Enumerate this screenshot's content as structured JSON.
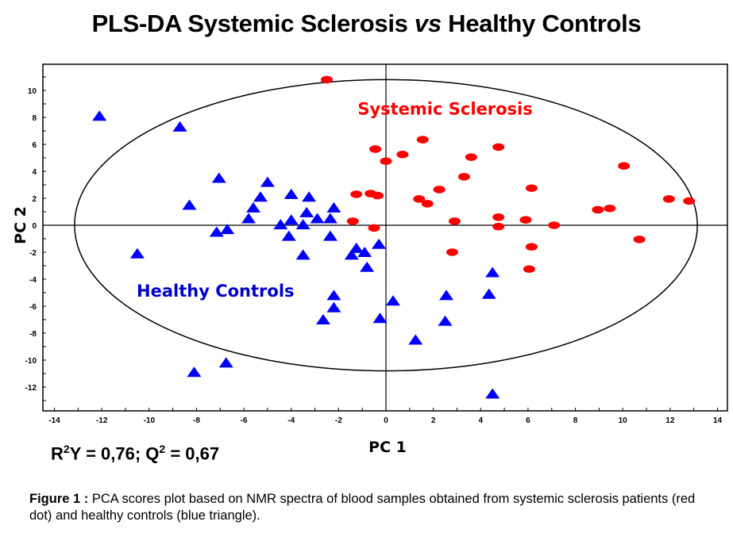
{
  "chart_data": {
    "type": "scatter",
    "title_parts": [
      "PLS-DA Systemic Sclerosis ",
      "vs",
      " Healthy Controls"
    ],
    "xlabel": "PC 1",
    "ylabel": "PC 2",
    "xlim": [
      -14.6,
      14.4
    ],
    "ylim": [
      -13.8,
      12
    ],
    "xticks": [
      -14,
      -12,
      -10,
      -8,
      -6,
      -4,
      -2,
      0,
      2,
      4,
      6,
      8,
      10,
      12,
      14
    ],
    "yticks": [
      -12,
      -10,
      -8,
      -6,
      -4,
      -2,
      0,
      2,
      4,
      6,
      8,
      10
    ],
    "grid": false,
    "confidence_ellipse": {
      "center": [
        0,
        0
      ],
      "semi_axes": [
        13.15,
        10.8
      ]
    },
    "annotations": [
      {
        "text": "Systemic Sclerosis",
        "x": 2.5,
        "y": 8.2,
        "color": "#ff0000"
      },
      {
        "text": "Healthy Controls",
        "x": -7.2,
        "y": -5.3,
        "color": "#0000cc"
      }
    ],
    "series": [
      {
        "name": "Systemic Sclerosis",
        "marker": "dot",
        "color": "#ff0000",
        "points": [
          [
            -2.5,
            10.8
          ],
          [
            -0.45,
            5.65
          ],
          [
            0.0,
            4.75
          ],
          [
            0.7,
            5.25
          ],
          [
            1.55,
            6.35
          ],
          [
            3.6,
            5.05
          ],
          [
            4.75,
            5.8
          ],
          [
            3.3,
            3.6
          ],
          [
            2.25,
            2.65
          ],
          [
            1.4,
            1.95
          ],
          [
            1.75,
            1.6
          ],
          [
            6.15,
            2.75
          ],
          [
            -1.25,
            2.3
          ],
          [
            -0.65,
            2.35
          ],
          [
            -0.35,
            2.2
          ],
          [
            -1.4,
            0.3
          ],
          [
            -0.5,
            -0.2
          ],
          [
            2.9,
            0.3
          ],
          [
            4.75,
            0.6
          ],
          [
            4.75,
            -0.1
          ],
          [
            5.9,
            0.4
          ],
          [
            7.1,
            0.0
          ],
          [
            2.8,
            -2.0
          ],
          [
            6.15,
            -1.6
          ],
          [
            6.05,
            -3.25
          ],
          [
            10.05,
            4.4
          ],
          [
            8.95,
            1.15
          ],
          [
            9.45,
            1.25
          ],
          [
            11.95,
            1.95
          ],
          [
            12.8,
            1.8
          ],
          [
            10.7,
            -1.05
          ]
        ]
      },
      {
        "name": "Healthy Controls",
        "marker": "triangle",
        "color": "#0000ff",
        "points": [
          [
            -12.1,
            8.1
          ],
          [
            -8.7,
            7.3
          ],
          [
            -8.3,
            1.5
          ],
          [
            -10.5,
            -2.1
          ],
          [
            -7.05,
            3.5
          ],
          [
            -5.0,
            3.2
          ],
          [
            -5.3,
            2.1
          ],
          [
            -5.6,
            1.3
          ],
          [
            -5.8,
            0.5
          ],
          [
            -6.7,
            -0.3
          ],
          [
            -7.15,
            -0.5
          ],
          [
            -4.0,
            2.3
          ],
          [
            -3.25,
            2.1
          ],
          [
            -3.35,
            0.95
          ],
          [
            -4.0,
            0.4
          ],
          [
            -4.45,
            0.05
          ],
          [
            -3.5,
            0.05
          ],
          [
            -2.9,
            0.5
          ],
          [
            -2.35,
            0.5
          ],
          [
            -2.2,
            1.3
          ],
          [
            -4.1,
            -0.8
          ],
          [
            -2.35,
            -0.8
          ],
          [
            -3.5,
            -2.2
          ],
          [
            -1.25,
            -1.7
          ],
          [
            -1.45,
            -2.2
          ],
          [
            -0.9,
            -2.0
          ],
          [
            -0.3,
            -1.4
          ],
          [
            -0.8,
            -3.1
          ],
          [
            -2.2,
            -5.2
          ],
          [
            -2.2,
            -6.1
          ],
          [
            -2.65,
            -7.0
          ],
          [
            0.3,
            -5.6
          ],
          [
            -0.25,
            -6.9
          ],
          [
            2.55,
            -5.2
          ],
          [
            2.5,
            -7.1
          ],
          [
            1.25,
            -8.5
          ],
          [
            4.5,
            -3.5
          ],
          [
            4.35,
            -5.1
          ],
          [
            4.5,
            -12.5
          ],
          [
            -6.75,
            -10.2
          ],
          [
            -8.1,
            -10.9
          ]
        ]
      }
    ]
  },
  "stats": {
    "r2y_label": "R",
    "r2y_sup": "2",
    "r2y_rest": "Y = 0,76; Q",
    "q2_sup": "2",
    "q2_rest": " = 0,67"
  },
  "caption": {
    "label": "Figure 1 :",
    "text": " PCA scores plot based on NMR spectra of blood samples obtained from systemic sclerosis patients (red dot) and healthy controls (blue triangle)."
  }
}
